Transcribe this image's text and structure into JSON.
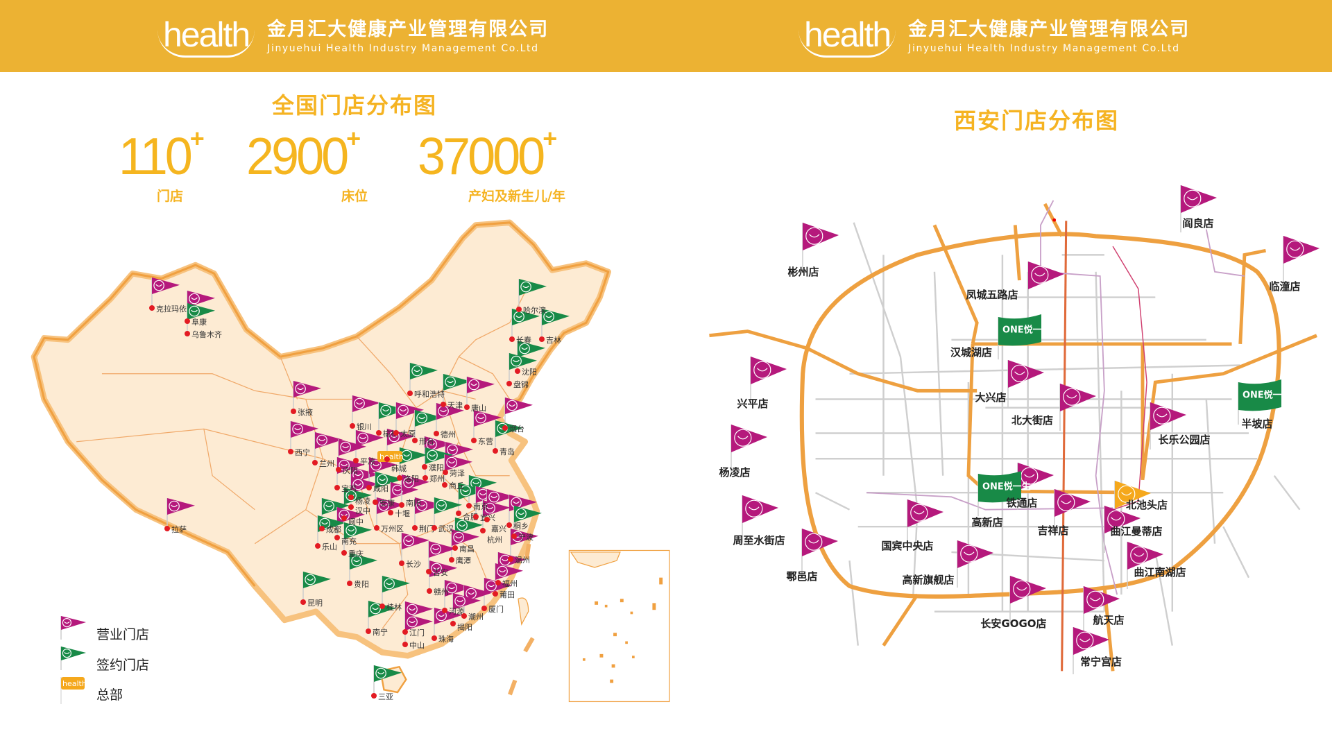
{
  "header": {
    "logo_text": "health",
    "company_cn": "金月汇大健康产业管理有限公司",
    "company_en": "Jinyuehui Health Industry Management Co.Ltd"
  },
  "colors": {
    "header_bg": "#ecb233",
    "accent": "#f5b322",
    "operating": "#b5197c",
    "signed": "#188a47",
    "hq": "#f5a81c",
    "map_fill": "#fdebd3",
    "map_border": "#f0a040",
    "road_main": "#eea040"
  },
  "national": {
    "title": "全国门店分布图",
    "stats": [
      {
        "value": "110",
        "suffix": "+",
        "label": "门店"
      },
      {
        "value": "2900",
        "suffix": "+",
        "label": "床位"
      },
      {
        "value": "37000",
        "suffix": "+",
        "label": "产妇及新生儿/年"
      }
    ],
    "legend": [
      {
        "type": "operating",
        "label": "营业门店"
      },
      {
        "type": "signed",
        "label": "签约门店"
      },
      {
        "type": "hq",
        "label": "总部"
      }
    ],
    "hq_label": "health",
    "cities": [
      {
        "name": "克拉玛依",
        "status": "operating"
      },
      {
        "name": "阜康",
        "status": "operating"
      },
      {
        "name": "乌鲁木齐",
        "status": "signed"
      },
      {
        "name": "张掖",
        "status": "operating"
      },
      {
        "name": "西宁",
        "status": "operating"
      },
      {
        "name": "兰州",
        "status": "operating"
      },
      {
        "name": "拉萨",
        "status": "operating"
      },
      {
        "name": "银川",
        "status": "operating"
      },
      {
        "name": "呼和浩特",
        "status": "signed"
      },
      {
        "name": "榆林",
        "status": "signed"
      },
      {
        "name": "太原",
        "status": "operating"
      },
      {
        "name": "邢台",
        "status": "signed"
      },
      {
        "name": "德州",
        "status": "operating"
      },
      {
        "name": "天津",
        "status": "signed"
      },
      {
        "name": "唐山",
        "status": "operating"
      },
      {
        "name": "东营",
        "status": "operating"
      },
      {
        "name": "烟台",
        "status": "operating"
      },
      {
        "name": "青岛",
        "status": "signed"
      },
      {
        "name": "沈阳",
        "status": "signed"
      },
      {
        "name": "盘锦",
        "status": "signed"
      },
      {
        "name": "哈尔滨",
        "status": "signed"
      },
      {
        "name": "长春",
        "status": "signed"
      },
      {
        "name": "吉林",
        "status": "signed"
      },
      {
        "name": "平凉",
        "status": "operating"
      },
      {
        "name": "庆阳",
        "status": "operating"
      },
      {
        "name": "韩城",
        "status": "operating"
      },
      {
        "name": "濮阳",
        "status": "operating"
      },
      {
        "name": "菏泽",
        "status": "operating"
      },
      {
        "name": "郑州",
        "status": "signed"
      },
      {
        "name": "洛阳",
        "status": "signed"
      },
      {
        "name": "商丘",
        "status": "operating"
      },
      {
        "name": "宝鸡",
        "status": "operating"
      },
      {
        "name": "杨凌",
        "status": "operating"
      },
      {
        "name": "咸阳",
        "status": "operating"
      },
      {
        "name": "汉中",
        "status": "operating"
      },
      {
        "name": "安康",
        "status": "signed"
      },
      {
        "name": "十堰",
        "status": "operating"
      },
      {
        "name": "南阳",
        "status": "operating"
      },
      {
        "name": "南京",
        "status": "signed"
      },
      {
        "name": "合肥",
        "status": "signed"
      },
      {
        "name": "宜兴",
        "status": "operating"
      },
      {
        "name": "嘉兴",
        "status": "operating"
      },
      {
        "name": "桐乡",
        "status": "operating"
      },
      {
        "name": "杭州",
        "status": "operating"
      },
      {
        "name": "宁波",
        "status": "signed"
      },
      {
        "name": "荆门",
        "status": "operating"
      },
      {
        "name": "武汉",
        "status": "signed"
      },
      {
        "name": "阆中",
        "status": "signed"
      },
      {
        "name": "成都",
        "status": "signed"
      },
      {
        "name": "南充",
        "status": "operating"
      },
      {
        "name": "万州区",
        "status": "operating"
      },
      {
        "name": "乐山",
        "status": "signed"
      },
      {
        "name": "重庆",
        "status": "signed"
      },
      {
        "name": "南昌",
        "status": "signed"
      },
      {
        "name": "长沙",
        "status": "operating"
      },
      {
        "name": "鹰潭",
        "status": "operating"
      },
      {
        "name": "温州",
        "status": "operating"
      },
      {
        "name": "贵阳",
        "status": "signed"
      },
      {
        "name": "昆明",
        "status": "signed"
      },
      {
        "name": "桂林",
        "status": "signed"
      },
      {
        "name": "南宁",
        "status": "signed"
      },
      {
        "name": "吉安",
        "status": "operating"
      },
      {
        "name": "赣州",
        "status": "operating"
      },
      {
        "name": "福州",
        "status": "operating"
      },
      {
        "name": "莆田",
        "status": "operating"
      },
      {
        "name": "厦门",
        "status": "operating"
      },
      {
        "name": "河源",
        "status": "operating"
      },
      {
        "name": "潮州",
        "status": "operating"
      },
      {
        "name": "揭阳",
        "status": "operating"
      },
      {
        "name": "江门",
        "status": "operating"
      },
      {
        "name": "中山",
        "status": "operating"
      },
      {
        "name": "珠海",
        "status": "operating"
      },
      {
        "name": "三亚",
        "status": "signed"
      }
    ]
  },
  "xian": {
    "title": "西安门店分布图",
    "banner_text": "ONE悦一生",
    "stores": [
      {
        "name": "彬州店",
        "status": "operating"
      },
      {
        "name": "阎良店",
        "status": "operating"
      },
      {
        "name": "临潼店",
        "status": "operating"
      },
      {
        "name": "凤城五路店",
        "status": "operating"
      },
      {
        "name": "汉城湖店",
        "status": "signed"
      },
      {
        "name": "兴平店",
        "status": "operating"
      },
      {
        "name": "大兴店",
        "status": "operating"
      },
      {
        "name": "北大街店",
        "status": "operating"
      },
      {
        "name": "长乐公园店",
        "status": "operating"
      },
      {
        "name": "半坡店",
        "status": "signed"
      },
      {
        "name": "杨凌店",
        "status": "operating"
      },
      {
        "name": "铁通店",
        "status": "operating"
      },
      {
        "name": "高新店",
        "status": "signed"
      },
      {
        "name": "北池头店",
        "status": "hq"
      },
      {
        "name": "吉祥店",
        "status": "operating"
      },
      {
        "name": "曲江曼蒂店",
        "status": "operating"
      },
      {
        "name": "周至水街店",
        "status": "operating"
      },
      {
        "name": "国宾中央店",
        "status": "operating"
      },
      {
        "name": "鄠邑店",
        "status": "operating"
      },
      {
        "name": "高新旗舰店",
        "status": "operating"
      },
      {
        "name": "曲江南湖店",
        "status": "operating"
      },
      {
        "name": "长安GOGO店",
        "status": "operating"
      },
      {
        "name": "航天店",
        "status": "operating"
      },
      {
        "name": "常宁宫店",
        "status": "operating"
      }
    ]
  }
}
